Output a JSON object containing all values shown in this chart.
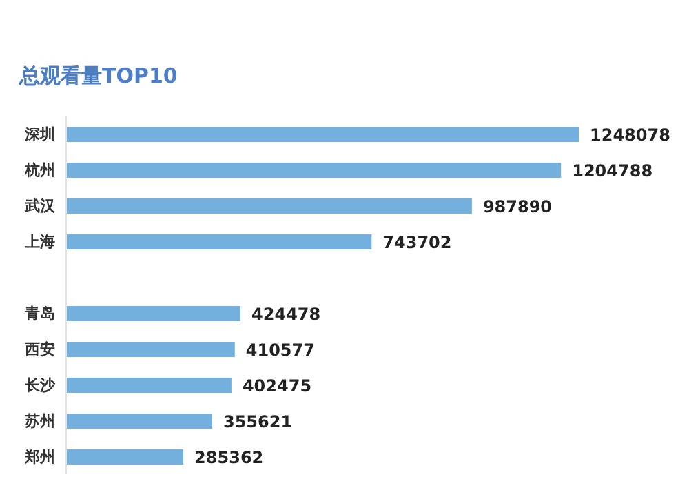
{
  "chart_data": {
    "type": "bar",
    "orientation": "horizontal",
    "title": "总观看量TOP10",
    "categories": [
      "深圳",
      "杭州",
      "武汉",
      "上海",
      null,
      "青岛",
      "西安",
      "长沙",
      "苏州",
      "郑州"
    ],
    "values": [
      1248078,
      1204788,
      987890,
      743702,
      null,
      424478,
      410577,
      402475,
      355621,
      285362
    ],
    "color": "#74b0de",
    "data_labels": true
  }
}
